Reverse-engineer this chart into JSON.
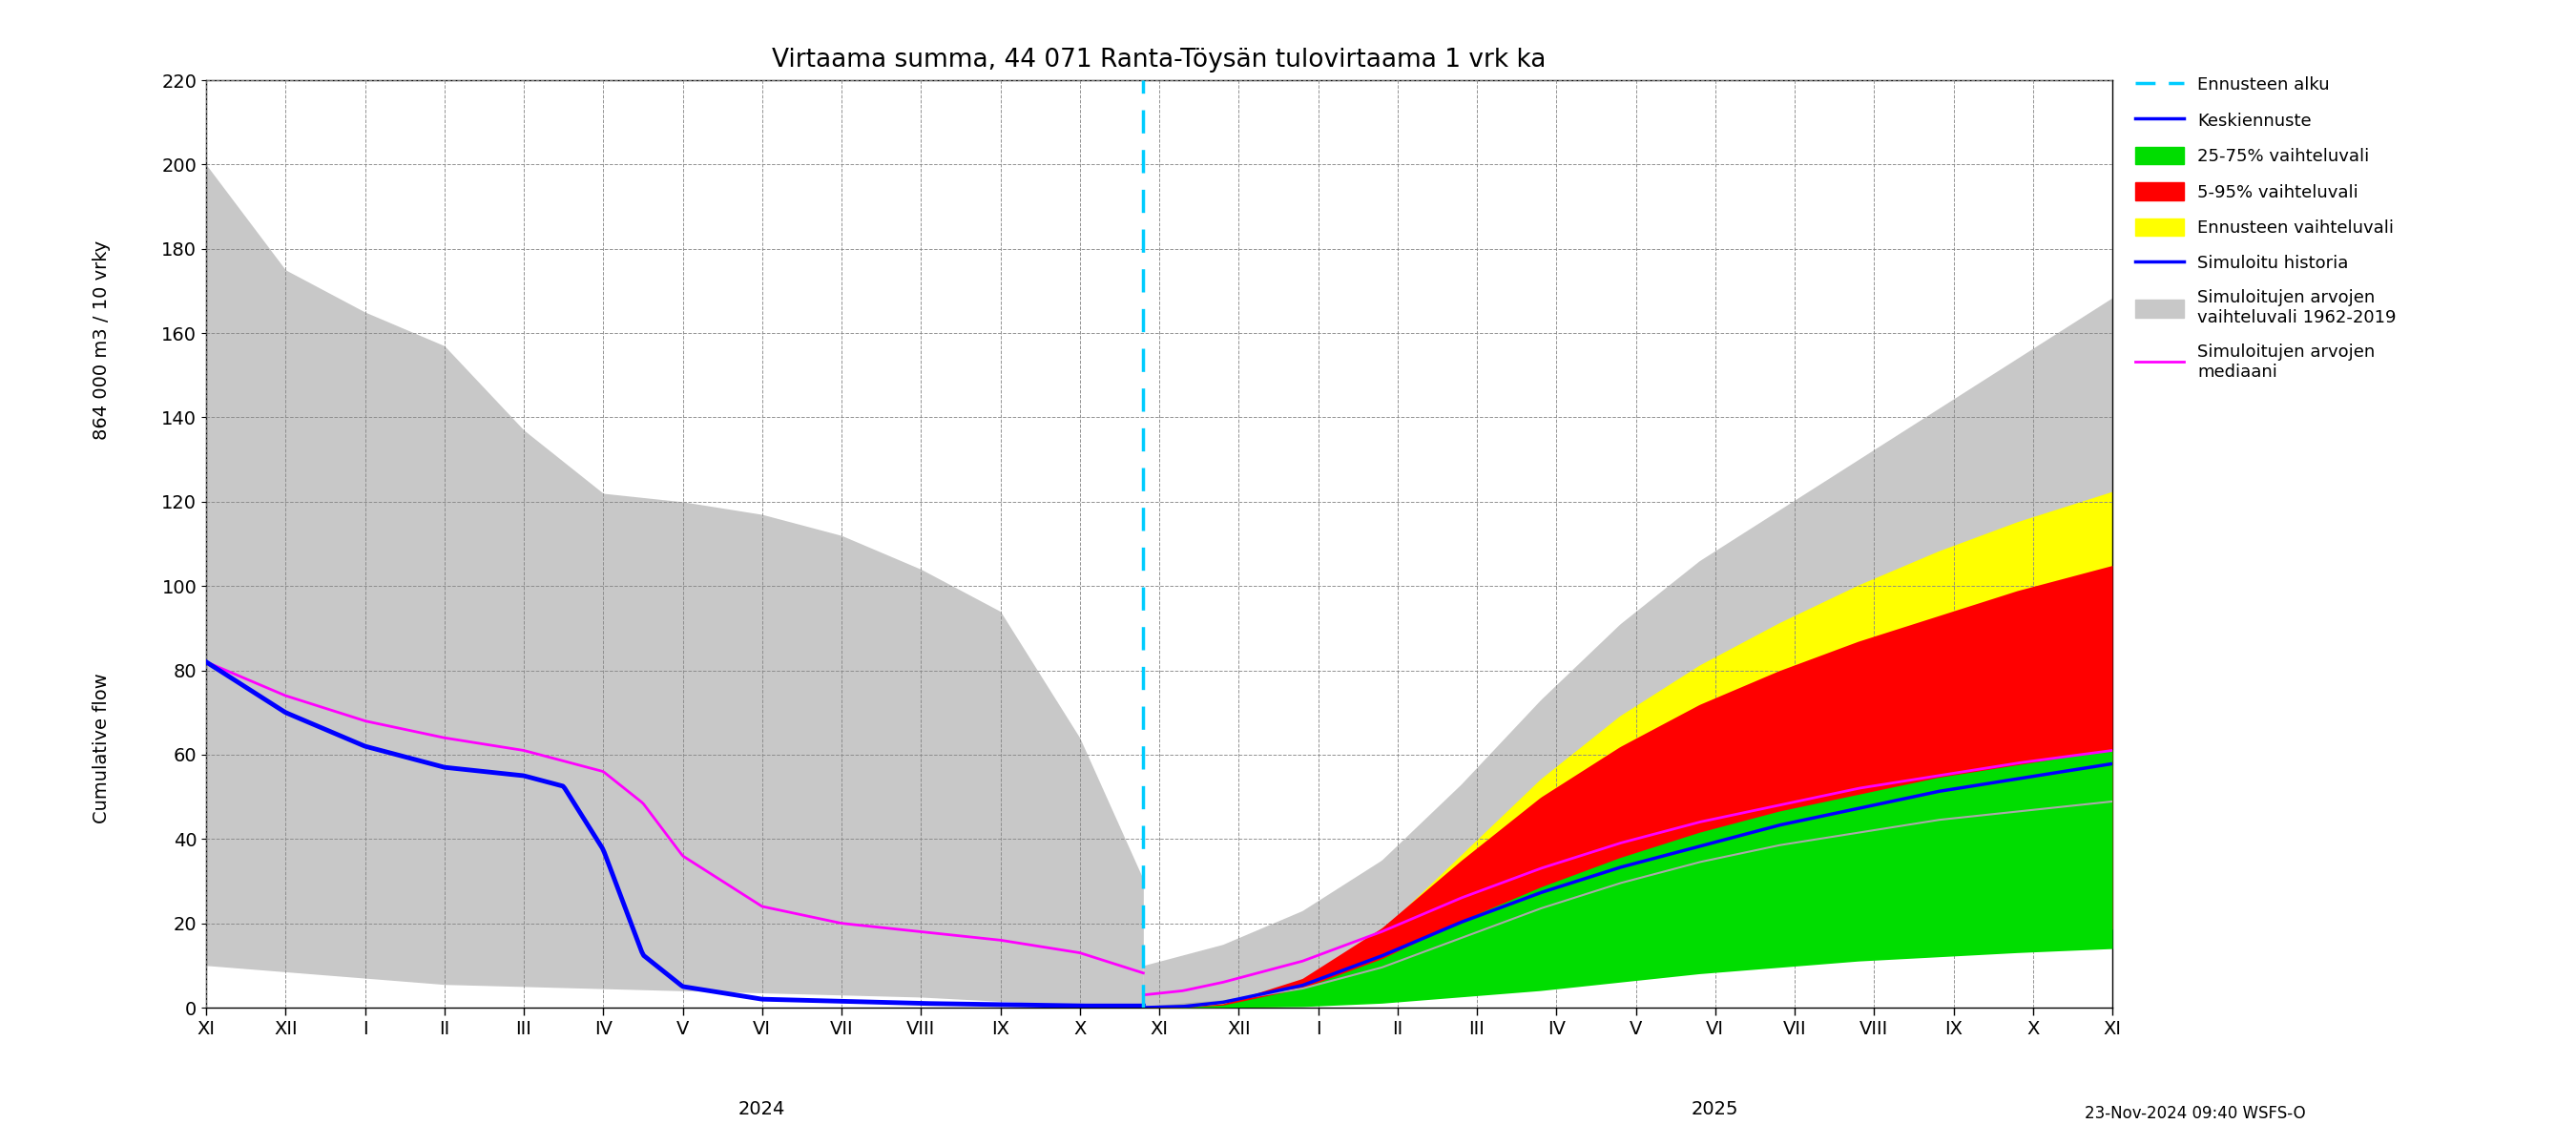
{
  "title": "Virtaama summa, 44 071 Ranta-Töysän tulovirtaama 1 vrk ka",
  "ylabel_top": "864 000 m3 / 10 vrky",
  "ylabel_bottom": "Cumulative flow",
  "xlabel_2024": "2024",
  "xlabel_2025": "2025",
  "footnote": "23-Nov-2024 09:40 WSFS-O",
  "ylim": [
    0,
    220
  ],
  "yticks": [
    0,
    20,
    40,
    60,
    80,
    100,
    120,
    140,
    160,
    180,
    200,
    220
  ],
  "x_month_labels": [
    "XI",
    "XII",
    "I",
    "II",
    "III",
    "IV",
    "V",
    "VI",
    "VII",
    "VIII",
    "IX",
    "X",
    "XI",
    "XII",
    "I",
    "II",
    "III",
    "IV",
    "V",
    "VI",
    "VII",
    "VIII",
    "IX",
    "X",
    "XI"
  ],
  "colors": {
    "gray_band": "#c8c8c8",
    "yellow_band": "#ffff00",
    "red_band": "#ff0000",
    "green_band": "#00dd00",
    "blue_line": "#0000ff",
    "magenta_line": "#ff00ff",
    "cyan_dashed": "#00ccff",
    "light_gray_line": "#aaaaaa"
  },
  "legend_labels": [
    "Ennusteen alku",
    "Keskiennuste",
    "25-75% vaihteluvali",
    "5-95% vaihteluvali",
    "Ennusteen vaihteluvali",
    "Simuloitu historia",
    "Simuloitujen arvojen\nvaihteluvali 1962-2019",
    "Simuloitujen arvojen\nmediaani"
  ]
}
